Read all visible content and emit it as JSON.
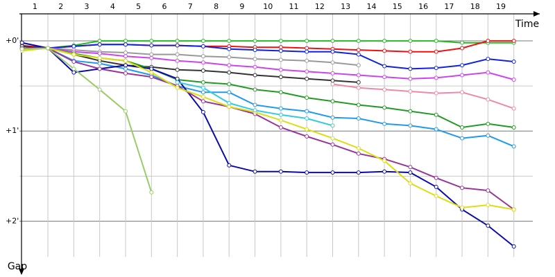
{
  "chart_data": {
    "type": "line",
    "x_label": "Time",
    "y_label": "Gap",
    "x": [
      0,
      1,
      2,
      3,
      4,
      5,
      6,
      7,
      8,
      9,
      10,
      11,
      12,
      13,
      14,
      15,
      16,
      17,
      18,
      19
    ],
    "xlim": [
      -0.1,
      20
    ],
    "xticks": [
      1,
      2,
      3,
      4,
      5,
      6,
      7,
      8,
      9,
      10,
      11,
      12,
      13,
      14,
      15,
      16,
      17,
      18,
      19
    ],
    "ylim": [
      -0.3,
      2.55
    ],
    "y_inverted": true,
    "yticks": [
      {
        "value": 0,
        "label": "+0'"
      },
      {
        "value": 1,
        "label": "+1'"
      },
      {
        "value": 2,
        "label": "+2'"
      }
    ],
    "minor_yticks": [
      0.5,
      1.5
    ],
    "grid": true,
    "series": [
      {
        "color": "#22bb22",
        "values": [
          0.09,
          0.08,
          0.05,
          0,
          0,
          0,
          0,
          0,
          0,
          0,
          0,
          0,
          0,
          0,
          0,
          0,
          0,
          0.02,
          0.02,
          0.02
        ]
      },
      {
        "color": "#ee1111",
        "values": [
          0.05,
          0.08,
          0.06,
          0.04,
          0.04,
          0.05,
          0.05,
          0.06,
          0.06,
          0.07,
          0.07,
          0.08,
          0.09,
          0.1,
          0.11,
          0.12,
          0.12,
          0.08,
          0,
          0
        ]
      },
      {
        "color": "#1122dd",
        "values": [
          0.02,
          0.08,
          0.06,
          0.04,
          0.04,
          0.05,
          0.05,
          0.06,
          0.09,
          0.1,
          0.11,
          0.12,
          0.12,
          0.15,
          0.28,
          0.31,
          0.3,
          0.27,
          0.2,
          0.23
        ]
      },
      {
        "color": "#999999",
        "values": [
          0.08,
          0.08,
          0.1,
          0.12,
          0.13,
          0.15,
          0.15,
          0.17,
          0.18,
          0.2,
          0.21,
          0.22,
          0.24,
          0.27,
          null,
          null,
          null,
          null,
          null,
          null
        ]
      },
      {
        "color": "#cc44ee",
        "values": [
          0.09,
          0.08,
          0.12,
          0.14,
          0.17,
          0.19,
          0.22,
          0.24,
          0.27,
          0.29,
          0.32,
          0.34,
          0.36,
          0.38,
          0.4,
          0.42,
          0.41,
          0.38,
          0.35,
          0.43
        ]
      },
      {
        "color": "#333333",
        "values": [
          0.06,
          0.08,
          0.15,
          0.22,
          0.27,
          0.29,
          0.32,
          0.33,
          0.35,
          0.38,
          0.4,
          0.42,
          0.44,
          0.46,
          null,
          null,
          null,
          null,
          null,
          null
        ]
      },
      {
        "color": "#ee88aa",
        "values": [
          null,
          null,
          null,
          null,
          null,
          null,
          null,
          null,
          null,
          null,
          null,
          null,
          0.48,
          0.52,
          0.54,
          0.56,
          0.58,
          0.57,
          0.65,
          0.75
        ]
      },
      {
        "color": "#229922",
        "values": [
          0.08,
          0.08,
          0.14,
          0.19,
          0.22,
          0.31,
          0.43,
          0.46,
          0.48,
          0.54,
          0.57,
          0.63,
          0.67,
          0.71,
          0.74,
          0.78,
          0.82,
          0.96,
          0.92,
          0.96
        ]
      },
      {
        "color": "#2299ee",
        "values": [
          0.08,
          0.08,
          0.22,
          0.25,
          0.31,
          0.38,
          0.5,
          0.57,
          0.57,
          0.71,
          0.75,
          0.78,
          0.85,
          0.86,
          0.92,
          0.94,
          0.98,
          1.08,
          1.05,
          1.17
        ]
      },
      {
        "color": "#0a0aaa",
        "values": [
          0.02,
          0.08,
          0.35,
          0.31,
          0.27,
          0.31,
          0.42,
          0.79,
          1.38,
          1.45,
          1.45,
          1.46,
          1.46,
          1.46,
          1.45,
          1.46,
          1.62,
          1.87,
          2.05,
          2.28
        ]
      },
      {
        "color": "#993399",
        "values": [
          0.08,
          0.08,
          0.23,
          0.31,
          0.36,
          0.4,
          0.5,
          0.67,
          0.73,
          0.81,
          0.96,
          1.06,
          1.15,
          1.25,
          1.31,
          1.4,
          1.52,
          1.63,
          1.66,
          1.87
        ]
      },
      {
        "color": "#dddd11",
        "values": [
          0.11,
          0.08,
          0.15,
          0.19,
          0.22,
          0.35,
          0.52,
          0.62,
          0.73,
          0.79,
          0.88,
          0.98,
          1.08,
          1.19,
          1.33,
          1.58,
          1.72,
          1.85,
          1.82,
          1.87
        ]
      },
      {
        "color": "#99cc66",
        "values": [
          0.09,
          0.08,
          0.31,
          0.54,
          0.78,
          1.68,
          null,
          null,
          null,
          null,
          null,
          null,
          null,
          null,
          null,
          null,
          null,
          null,
          null,
          null
        ]
      },
      {
        "color": "#33ccdd",
        "values": [
          null,
          null,
          null,
          null,
          null,
          null,
          0.46,
          0.52,
          0.69,
          0.77,
          0.82,
          0.86,
          0.94,
          null,
          null,
          null,
          null,
          null,
          null,
          null
        ]
      }
    ]
  }
}
